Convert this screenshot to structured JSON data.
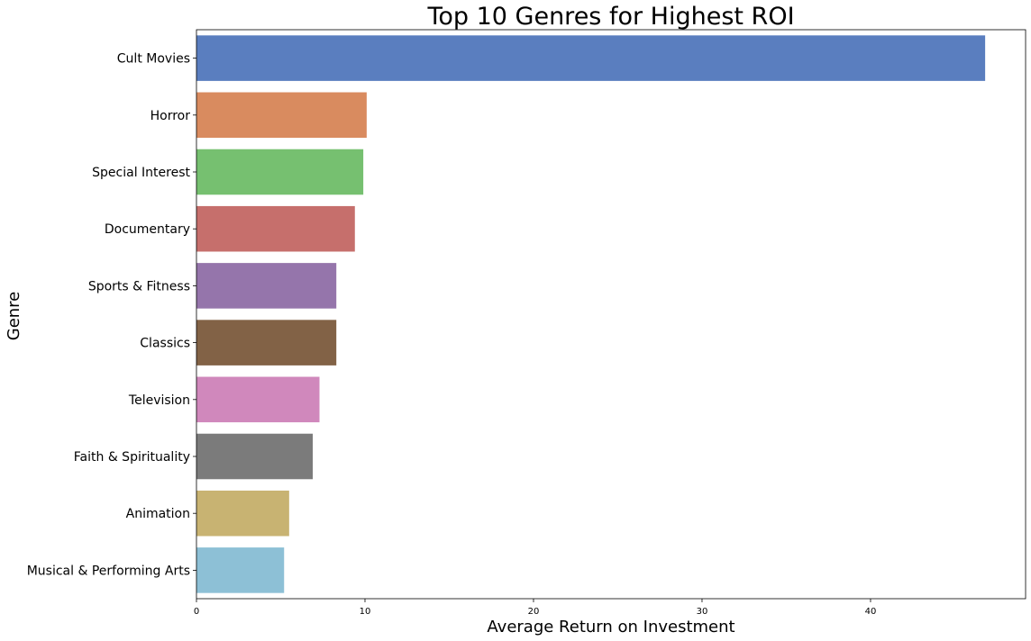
{
  "chart_data": {
    "type": "bar",
    "orientation": "horizontal",
    "title": "Top 10 Genres for Highest ROI",
    "xlabel": "Average Return on Investment",
    "ylabel": "Genre",
    "categories": [
      "Cult Movies",
      "Horror",
      "Special Interest",
      "Documentary",
      "Sports & Fitness",
      "Classics",
      "Television",
      "Faith & Spirituality",
      "Animation",
      "Musical & Performing Arts"
    ],
    "values": [
      46.8,
      10.1,
      9.9,
      9.4,
      8.3,
      8.3,
      7.3,
      6.9,
      5.5,
      5.2
    ],
    "colors": [
      "#5a7ebf",
      "#d98b5f",
      "#76c070",
      "#c66f6c",
      "#9575ab",
      "#826246",
      "#d088bc",
      "#7b7b7b",
      "#c8b372",
      "#8dc0d6"
    ],
    "xlim": [
      0,
      49.2
    ],
    "xticks": [
      0,
      10,
      20,
      30,
      40
    ],
    "xtick_labels": [
      "0",
      "10",
      "20",
      "30",
      "40"
    ],
    "grid": false,
    "legend": "none"
  }
}
